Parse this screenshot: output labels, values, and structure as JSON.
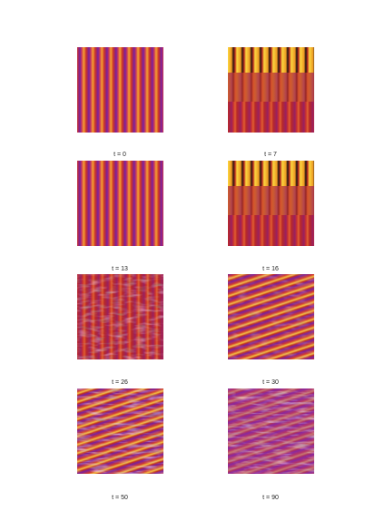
{
  "panels": [
    {
      "label": "t = 0"
    },
    {
      "label": "t = 7"
    },
    {
      "label": "t = 13"
    },
    {
      "label": "t = 16"
    },
    {
      "label": "t = 26"
    },
    {
      "label": "t = 30"
    },
    {
      "label": "t = 50"
    },
    {
      "label": "t = 90"
    }
  ]
}
